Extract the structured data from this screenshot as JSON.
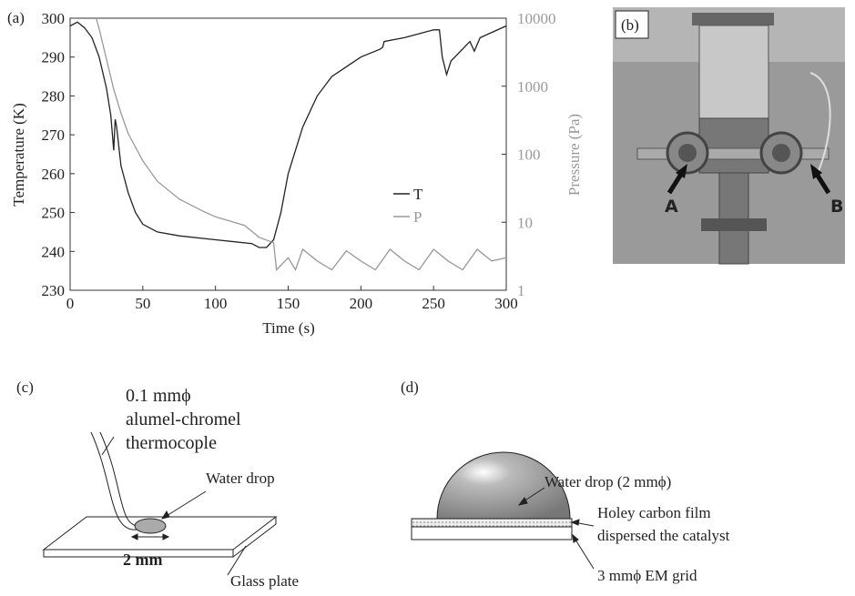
{
  "chart_data": {
    "type": "line",
    "panel_label": "(a)",
    "x_label": "Time (s)",
    "y_label": "Temperature (K)",
    "y2_label": "Pressure (Pa)",
    "xlim": [
      0,
      300
    ],
    "xticks": [
      0,
      50,
      100,
      150,
      200,
      250,
      300
    ],
    "ylim": [
      230,
      300
    ],
    "yticks": [
      230,
      240,
      250,
      260,
      270,
      280,
      290,
      300
    ],
    "y2lim": [
      1,
      10000
    ],
    "y2ticks": [
      1,
      10,
      100,
      1000,
      10000
    ],
    "y2scale": "log",
    "legend": "center right",
    "series": [
      {
        "name": "T",
        "color": "#222222",
        "x": [
          0,
          5,
          10,
          15,
          20,
          25,
          28,
          30,
          31,
          32,
          35,
          40,
          45,
          50,
          60,
          75,
          100,
          125,
          130,
          135,
          140,
          145,
          150,
          160,
          170,
          180,
          200,
          213,
          215,
          216,
          230,
          250,
          254,
          256,
          259,
          262,
          275,
          278,
          282,
          300
        ],
        "values": [
          298,
          299,
          297.5,
          295,
          290,
          282,
          275,
          266,
          274,
          272,
          262,
          255,
          250,
          247,
          245,
          244,
          243,
          242,
          241,
          241,
          243,
          250,
          260,
          272,
          280,
          285,
          290,
          292,
          292.5,
          294,
          295,
          297,
          297,
          290,
          285.5,
          289,
          294,
          291.5,
          295,
          298
        ]
      },
      {
        "name": "P",
        "color": "#999999",
        "axis": "y2",
        "x": [
          18,
          20,
          25,
          30,
          35,
          40,
          50,
          60,
          75,
          90,
          100,
          120,
          130,
          140,
          142,
          150,
          155,
          160,
          170,
          180,
          190,
          200,
          210,
          220,
          230,
          240,
          250,
          260,
          270,
          280,
          290,
          300
        ],
        "values": [
          10000,
          7000,
          2500,
          900,
          400,
          200,
          80,
          40,
          22,
          15,
          12,
          9,
          6,
          5,
          2,
          3,
          2,
          4,
          2.7,
          2,
          3.8,
          2.7,
          2,
          4,
          2.7,
          2,
          4,
          2.7,
          2,
          4,
          2.7,
          3
        ]
      }
    ]
  },
  "photo": {
    "label": "(b)",
    "marker_a": "A",
    "marker_b": "B"
  },
  "diagram_c": {
    "label": "(c)",
    "wire_lines": [
      "0.1 mmϕ",
      "alumel-chromel",
      "thermocople"
    ],
    "drop": "Water drop",
    "width": "2 mm",
    "plate": "Glass plate"
  },
  "diagram_d": {
    "label": "(d)",
    "drop": "Water drop (2 mmϕ)",
    "film_lines": [
      "Holey carbon film",
      "dispersed the catalyst"
    ],
    "grid": "3 mmϕ EM grid"
  }
}
